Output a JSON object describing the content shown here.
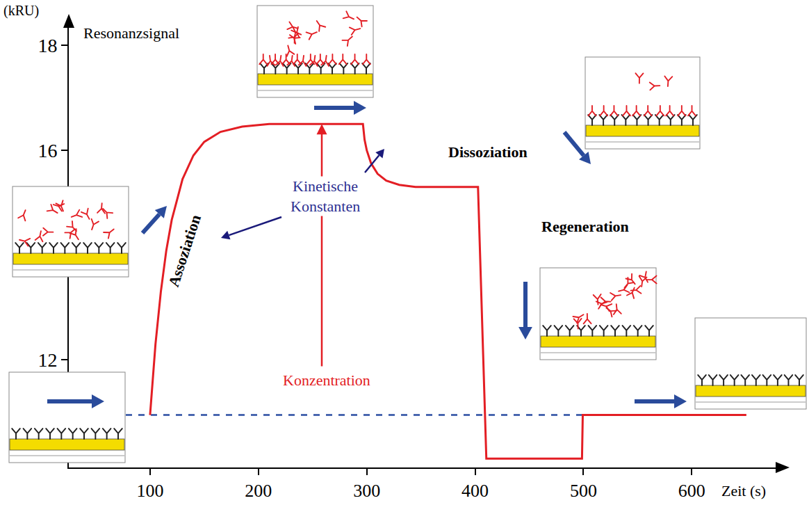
{
  "chart_data": {
    "type": "line",
    "x_label": "Zeit (s)",
    "y_label": "Resonanzsignal",
    "y_unit": "(kRU)",
    "xlim": [
      25,
      680
    ],
    "ylim": [
      9.95,
      18.4
    ],
    "xticks": [
      100,
      200,
      300,
      400,
      500,
      600
    ],
    "yticks": [
      12,
      16,
      18
    ],
    "grid": false,
    "series": [
      {
        "color": "#2b4ea2",
        "line_style": "dashed",
        "x": [
          77.6,
          650.4
        ],
        "values": [
          10.95,
          10.95
        ]
      },
      {
        "color": "#e31e24",
        "line_style": "solid",
        "x": [
          100,
          102,
          105,
          110,
          115,
          120,
          130,
          140,
          150,
          165,
          185,
          210,
          296.5,
          298,
          300,
          304,
          310,
          318,
          330,
          345,
          402.7,
          410.4,
          498.7,
          499.4,
          650.4
        ],
        "values": [
          10.95,
          11.53,
          12.3,
          13.31,
          14.09,
          14.67,
          15.45,
          15.9,
          16.16,
          16.35,
          16.45,
          16.5,
          16.5,
          16.2,
          16.0,
          15.75,
          15.55,
          15.42,
          15.34,
          15.3,
          15.3,
          10.12,
          10.12,
          10.95,
          10.95
        ]
      }
    ],
    "annotations": [
      {
        "text": "Assoziation",
        "color": "#000000"
      },
      {
        "text": "Kinetische Konstanten",
        "color": "#2e3192"
      },
      {
        "text": "Konzentration",
        "color": "#e31e24"
      },
      {
        "text": "Dissoziation",
        "color": "#000000"
      },
      {
        "text": "Regeneration",
        "color": "#000000"
      }
    ]
  }
}
